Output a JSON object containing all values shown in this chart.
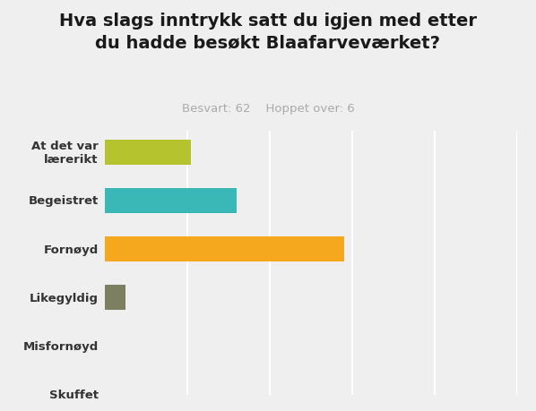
{
  "title": "Hva slags inntrykk satt du igjen med etter\ndu hadde besøkt Blaafarveværket?",
  "subtitle": "Besvart: 62    Hoppet over: 6",
  "categories": [
    "At det var\nlærerikt",
    "Begeistret",
    "Fornøyd",
    "Likegyldig",
    "Misfornøyd",
    "Skuffet"
  ],
  "values": [
    21,
    32,
    58,
    5,
    0,
    0
  ],
  "bar_colors": [
    "#b5c42e",
    "#3ab8b8",
    "#f5a81e",
    "#7d8060",
    "#cccccc",
    "#cccccc"
  ],
  "bg_color": "#efefef",
  "title_color": "#1a1a1a",
  "subtitle_color": "#aaaaaa",
  "label_color": "#333333",
  "xlim": [
    0,
    100
  ],
  "bar_height": 0.52,
  "title_fontsize": 14,
  "subtitle_fontsize": 9.5,
  "label_fontsize": 9.5,
  "grid_color": "#ffffff",
  "grid_positions": [
    20,
    40,
    60,
    80,
    100
  ]
}
